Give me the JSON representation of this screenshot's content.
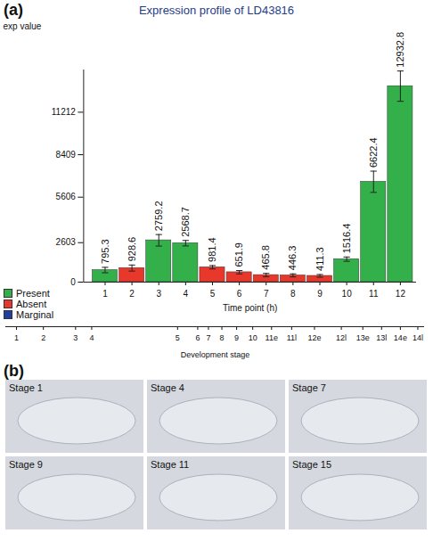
{
  "chart_data": {
    "type": "bar",
    "panel_label": "(a)",
    "title": "Expression profile of LD43816",
    "y_label": "exp value",
    "x_label": "Time point (h)",
    "x": [
      1,
      2,
      3,
      4,
      5,
      6,
      7,
      8,
      9,
      10,
      11,
      12
    ],
    "values": [
      795.3,
      928.6,
      2759.2,
      2568.7,
      981.4,
      651.9,
      465.8,
      446.3,
      411.3,
      1516.4,
      6622.4,
      12932.8
    ],
    "errors": [
      180,
      200,
      380,
      180,
      110,
      110,
      110,
      100,
      90,
      140,
      700,
      1000
    ],
    "status": [
      "Present",
      "Absent",
      "Present",
      "Present",
      "Absent",
      "Absent",
      "Absent",
      "Absent",
      "Absent",
      "Present",
      "Present",
      "Present"
    ],
    "legend_entries": [
      {
        "name": "Present",
        "color": "#33b04a"
      },
      {
        "name": "Absent",
        "color": "#e8382b"
      },
      {
        "name": "Marginal",
        "color": "#1f3fa3"
      }
    ],
    "legend": "bottom-left",
    "data_labels": true,
    "xlim": [
      0.2,
      12.6
    ],
    "xticks": [
      1,
      2,
      3,
      4,
      5,
      6,
      7,
      8,
      9,
      10,
      11,
      12
    ],
    "ylim": [
      0,
      14000
    ],
    "yticks": [
      0,
      2603,
      5606,
      8409,
      11212
    ],
    "x2_label": "Development stage",
    "x2lim": [
      -2.7,
      12.9
    ],
    "x2ticks": [
      {
        "value": -2.3,
        "label": "1"
      },
      {
        "value": -1.3,
        "label": "2"
      },
      {
        "value": -0.1,
        "label": "3"
      },
      {
        "value": 0.5,
        "label": "4"
      },
      {
        "value": 3.7,
        "label": "5"
      },
      {
        "value": 4.45,
        "label": "6"
      },
      {
        "value": 4.85,
        "label": "7"
      },
      {
        "value": 5.35,
        "label": "8"
      },
      {
        "value": 5.9,
        "label": "9"
      },
      {
        "value": 6.5,
        "label": "10"
      },
      {
        "value": 7.2,
        "label": "11e"
      },
      {
        "value": 7.95,
        "label": "11l"
      },
      {
        "value": 8.8,
        "label": "12e"
      },
      {
        "value": 9.8,
        "label": "12l"
      },
      {
        "value": 10.6,
        "label": "13e"
      },
      {
        "value": 11.3,
        "label": "13l"
      },
      {
        "value": 12.0,
        "label": "14e"
      },
      {
        "value": 12.65,
        "label": "14l"
      }
    ]
  },
  "images": {
    "panel_label": "(b)",
    "panels": [
      "Stage 1",
      "Stage 4",
      "Stage 7",
      "Stage 9",
      "Stage 11",
      "Stage 15"
    ]
  }
}
